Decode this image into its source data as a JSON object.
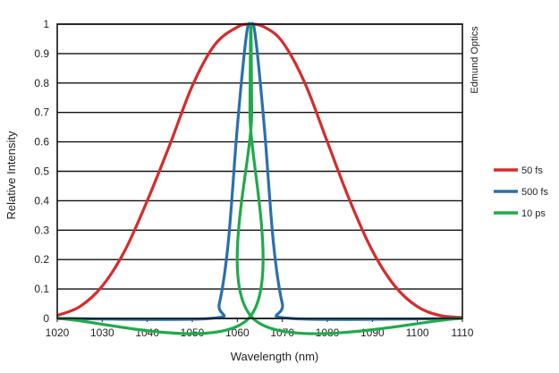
{
  "chart_data": {
    "type": "line",
    "xlabel": "Wavelength (nm)",
    "ylabel": "Relative Intensity",
    "xlim": [
      1020,
      1110
    ],
    "ylim": [
      0,
      1
    ],
    "x_ticks": [
      "1020",
      "1030",
      "1040",
      "1050",
      "1060",
      "1070",
      "1080",
      "1090",
      "1100",
      "1110"
    ],
    "y_ticks": [
      "0",
      "0.1",
      "0.2",
      "0.3",
      "0.4",
      "0.5",
      "0.6",
      "0.7",
      "0.8",
      "0.9",
      "1"
    ],
    "grid": "horizontal",
    "legend_position": "right",
    "series": [
      {
        "name": "50 fs",
        "color": "#d62b2b",
        "x": [
          1020,
          1025,
          1030,
          1035,
          1040,
          1045,
          1050,
          1055,
          1060,
          1063,
          1066,
          1070,
          1075,
          1080,
          1085,
          1090,
          1095,
          1100,
          1105,
          1110
        ],
        "y": [
          0.01,
          0.04,
          0.11,
          0.23,
          0.4,
          0.59,
          0.79,
          0.93,
          0.99,
          1.0,
          0.99,
          0.94,
          0.8,
          0.6,
          0.4,
          0.23,
          0.11,
          0.04,
          0.01,
          0.003
        ]
      },
      {
        "name": "500 fs",
        "color": "#2a6fb0",
        "x": [
          1020,
          1054,
          1056,
          1058,
          1060,
          1062,
          1063,
          1064,
          1066,
          1068,
          1070,
          1072,
          1110
        ],
        "y": [
          0,
          0.0,
          0.05,
          0.26,
          0.65,
          0.96,
          1.0,
          0.96,
          0.65,
          0.26,
          0.05,
          0.0,
          0
        ]
      },
      {
        "name": "10 ps",
        "color": "#1faa4a",
        "x": [
          1020,
          1062.5,
          1062.8,
          1063,
          1063.2,
          1063.5,
          1110
        ],
        "y": [
          0,
          0,
          0.7,
          1.0,
          0.7,
          0,
          0
        ]
      }
    ]
  },
  "watermark": "Edmund Optics"
}
